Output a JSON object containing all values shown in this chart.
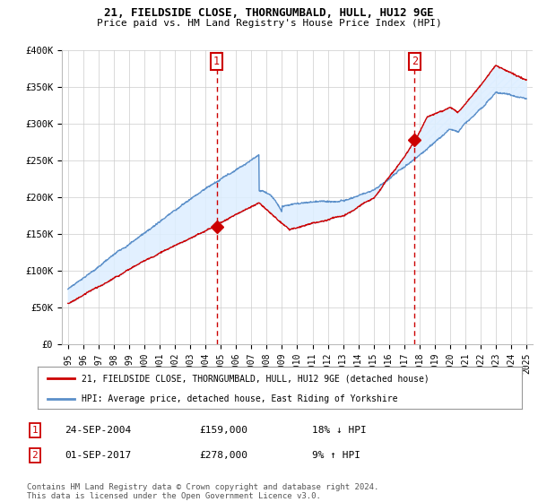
{
  "title_line1": "21, FIELDSIDE CLOSE, THORNGUMBALD, HULL, HU12 9GE",
  "title_line2": "Price paid vs. HM Land Registry's House Price Index (HPI)",
  "ylim": [
    0,
    400000
  ],
  "ytick_labels": [
    "£0",
    "£50K",
    "£100K",
    "£150K",
    "£200K",
    "£250K",
    "£300K",
    "£350K",
    "£400K"
  ],
  "ytick_values": [
    0,
    50000,
    100000,
    150000,
    200000,
    250000,
    300000,
    350000,
    400000
  ],
  "sale1_date_x": 2004.73,
  "sale1_price": 159000,
  "sale1_text": "24-SEP-2004",
  "sale1_price_text": "£159,000",
  "sale1_hpi_text": "18% ↓ HPI",
  "sale2_date_x": 2017.67,
  "sale2_price": 278000,
  "sale2_text": "01-SEP-2017",
  "sale2_price_text": "£278,000",
  "sale2_hpi_text": "9% ↑ HPI",
  "hpi_color": "#5b8fc9",
  "price_color": "#cc0000",
  "legend_line1": "21, FIELDSIDE CLOSE, THORNGUMBALD, HULL, HU12 9GE (detached house)",
  "legend_line2": "HPI: Average price, detached house, East Riding of Yorkshire",
  "footnote": "Contains HM Land Registry data © Crown copyright and database right 2024.\nThis data is licensed under the Open Government Licence v3.0.",
  "background_color": "#ffffff",
  "grid_color": "#cccccc",
  "fill_color": "#ddeeff",
  "xmin": 1994.6,
  "xmax": 2025.4
}
